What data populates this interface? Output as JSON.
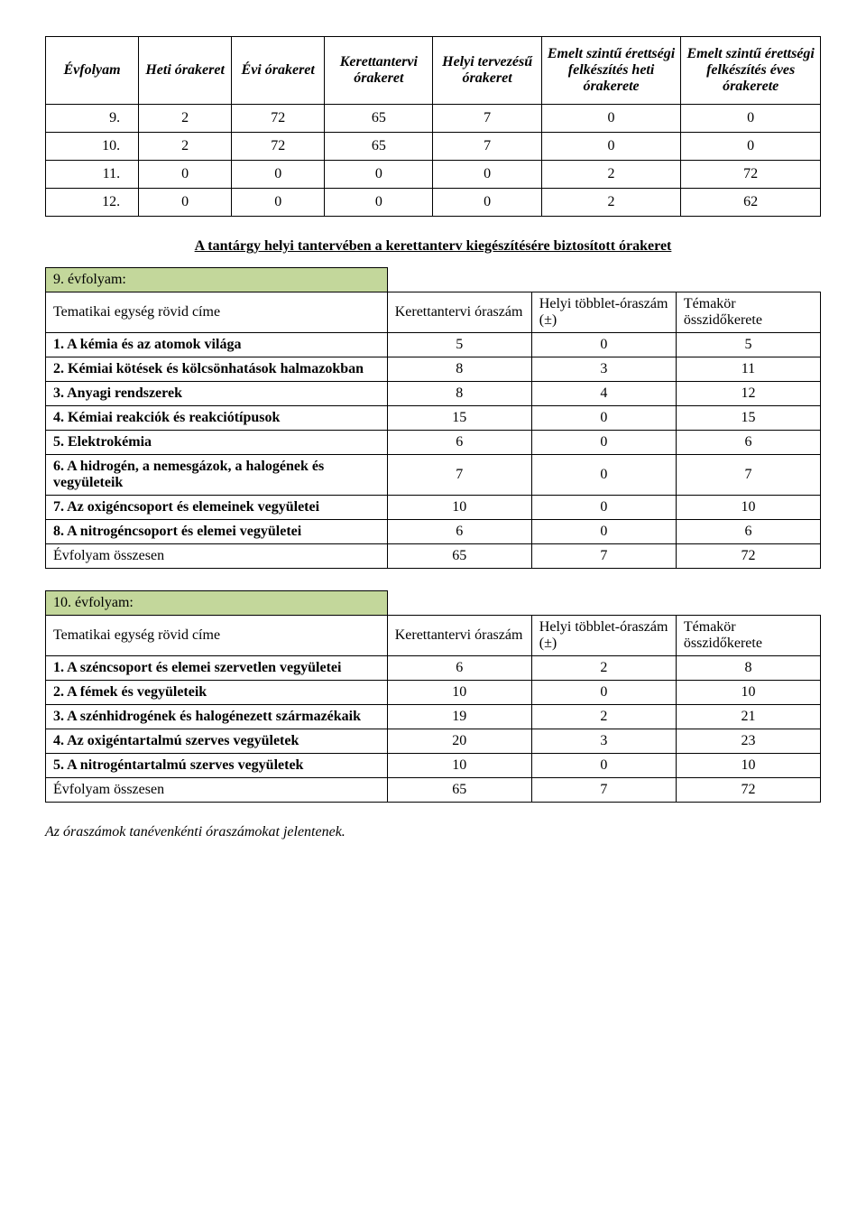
{
  "table1": {
    "headers": [
      "Évfolyam",
      "Heti órakeret",
      "Évi órakeret",
      "Kerettantervi órakeret",
      "Helyi tervezésű órakeret",
      "Emelt szintű érettségi felkészítés heti órakerete",
      "Emelt szintű érettségi felkészítés éves órakerete"
    ],
    "rows": [
      [
        "9.",
        "2",
        "72",
        "65",
        "7",
        "0",
        "0"
      ],
      [
        "10.",
        "2",
        "72",
        "65",
        "7",
        "0",
        "0"
      ],
      [
        "11.",
        "0",
        "0",
        "0",
        "0",
        "2",
        "72"
      ],
      [
        "12.",
        "0",
        "0",
        "0",
        "0",
        "2",
        "62"
      ]
    ]
  },
  "subtitle": "A tantárgy helyi tantervében a kerettanterv kiegészítésére biztosított órakeret",
  "table2": {
    "title": "9. évfolyam:",
    "header_row": [
      "Tematikai egység rövid címe",
      "Kerettantervi óraszám",
      "Helyi többlet-óraszám (±)",
      "Témakör összidőkerete"
    ],
    "rows": [
      {
        "label": "1. A kémia és az atomok világa",
        "a": "5",
        "b": "0",
        "c": "5"
      },
      {
        "label": "2. Kémiai kötések és kölcsönhatások halmazokban",
        "a": "8",
        "b": "3",
        "c": "11"
      },
      {
        "label": "3. Anyagi rendszerek",
        "a": "8",
        "b": "4",
        "c": "12"
      },
      {
        "label": "4. Kémiai reakciók és reakciótípusok",
        "a": "15",
        "b": "0",
        "c": "15"
      },
      {
        "label": "5. Elektrokémia",
        "a": "6",
        "b": "0",
        "c": "6"
      },
      {
        "label": "6. A hidrogén, a nemesgázok, a halogének és vegyületeik",
        "a": "7",
        "b": "0",
        "c": "7"
      },
      {
        "label": "7. Az oxigéncsoport és elemeinek vegyületei",
        "a": "10",
        "b": "0",
        "c": "10"
      },
      {
        "label": "8. A nitrogéncsoport és elemei vegyületei",
        "a": "6",
        "b": "0",
        "c": "6"
      }
    ],
    "total": {
      "label": "Évfolyam összesen",
      "a": "65",
      "b": "7",
      "c": "72"
    }
  },
  "table3": {
    "title": "10. évfolyam:",
    "header_row": [
      "Tematikai egység rövid címe",
      "Kerettantervi óraszám",
      "Helyi többlet-óraszám (±)",
      "Témakör összidőkerete"
    ],
    "rows": [
      {
        "label": "1. A széncsoport és elemei szervetlen vegyületei",
        "a": "6",
        "b": "2",
        "c": "8"
      },
      {
        "label": "2. A fémek és vegyületeik",
        "a": "10",
        "b": "0",
        "c": "10"
      },
      {
        "label": "3. A szénhidrogének és halogénezett származékaik",
        "a": "19",
        "b": "2",
        "c": "21"
      },
      {
        "label": "4. Az oxigéntartalmú szerves vegyületek",
        "a": "20",
        "b": "3",
        "c": "23"
      },
      {
        "label": "5. A nitrogéntartalmú szerves vegyületek",
        "a": "10",
        "b": "0",
        "c": "10"
      }
    ],
    "total": {
      "label": "Évfolyam összesen",
      "a": "65",
      "b": "7",
      "c": "72"
    }
  },
  "footnote": "Az óraszámok tanévenkénti óraszámokat jelentenek."
}
